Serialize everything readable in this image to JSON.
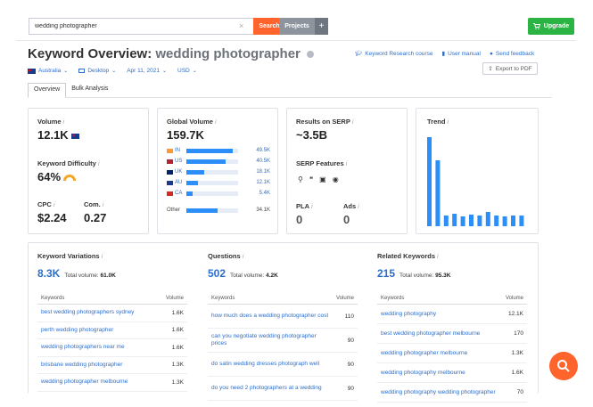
{
  "search": {
    "value": "wedding photographer",
    "button_label": "Search",
    "clear_symbol": "×"
  },
  "projects": {
    "label": "Projects",
    "plus": "+"
  },
  "upgrade": {
    "label": "Upgrade"
  },
  "title": {
    "prefix": "Keyword Overview:",
    "keyword": "wedding photographer"
  },
  "filters": {
    "database": "Australia",
    "device": "Desktop",
    "date": "Apr 11, 2021",
    "currency": "USD"
  },
  "links": {
    "research_course": "Keyword Research course",
    "user_manual": "User manual",
    "feedback": "Send feedback",
    "export": "Export to PDF"
  },
  "tabs": [
    {
      "label": "Overview",
      "active": true
    },
    {
      "label": "Bulk Analysis",
      "active": false
    }
  ],
  "volume": {
    "label": "Volume",
    "value": "12.1K"
  },
  "difficulty": {
    "label": "Keyword Difficulty",
    "value": "64%"
  },
  "cpc": {
    "label": "CPC",
    "value": "$2.24"
  },
  "com": {
    "label": "Com.",
    "value": "0.27"
  },
  "global": {
    "label": "Global Volume",
    "value": "159.7K",
    "countries": [
      {
        "code": "IN",
        "value": "49.5K",
        "share": 0.31,
        "flag": "#ff9933"
      },
      {
        "code": "US",
        "value": "40.5K",
        "share": 0.26,
        "flag": "#b22234"
      },
      {
        "code": "UK",
        "value": "18.1K",
        "share": 0.12,
        "flag": "#012169"
      },
      {
        "code": "AU",
        "value": "12.1K",
        "share": 0.08,
        "flag": "#1a3a8c"
      },
      {
        "code": "CA",
        "value": "5.4K",
        "share": 0.04,
        "flag": "#d52b1e"
      }
    ],
    "other": {
      "label": "Other",
      "value": "34.1K",
      "share": 0.21
    }
  },
  "serp": {
    "label": "Results on SERP",
    "value": "~3.5B",
    "features_label": "SERP Features",
    "pla_label": "PLA",
    "pla_value": "0",
    "ads_label": "Ads",
    "ads_value": "0"
  },
  "trend": {
    "label": "Trend",
    "values": [
      1.0,
      0.74,
      0.12,
      0.14,
      0.11,
      0.13,
      0.12,
      0.16,
      0.12,
      0.11,
      0.12,
      0.12
    ],
    "color": "#2c8ef8"
  },
  "variations": {
    "title": "Keyword Variations",
    "count": "8.3K",
    "total_label": "Total volume:",
    "total": "61.0K",
    "col_kw": "Keywords",
    "col_vol": "Volume",
    "rows": [
      {
        "k": "best wedding photographers sydney",
        "v": "1.6K"
      },
      {
        "k": "perth wedding photographer",
        "v": "1.6K"
      },
      {
        "k": "wedding photographers near me",
        "v": "1.6K"
      },
      {
        "k": "brisbane wedding photographer",
        "v": "1.3K"
      },
      {
        "k": "wedding photographer melbourne",
        "v": "1.3K"
      }
    ]
  },
  "questions": {
    "title": "Questions",
    "count": "502",
    "total_label": "Total volume:",
    "total": "4.2K",
    "col_kw": "Keywords",
    "col_vol": "Volume",
    "rows": [
      {
        "k": "how much does a wedding photographer cost",
        "v": "110"
      },
      {
        "k": "can you negotiate wedding photographer prices",
        "v": "90"
      },
      {
        "k": "do satin wedding dresses photograph well",
        "v": "90"
      },
      {
        "k": "do you need 2 photographers at a wedding",
        "v": "90"
      }
    ]
  },
  "related": {
    "title": "Related Keywords",
    "count": "215",
    "total_label": "Total volume:",
    "total": "95.3K",
    "col_kw": "Keywords",
    "col_vol": "Volume",
    "rows": [
      {
        "k": "wedding photography",
        "v": "12.1K"
      },
      {
        "k": "best wedding photographer melbourne",
        "v": "170"
      },
      {
        "k": "wedding photographer melbourne",
        "v": "1.3K"
      },
      {
        "k": "wedding photography melbourne",
        "v": "1.6K"
      },
      {
        "k": "wedding photography wedding photographer",
        "v": "70"
      }
    ]
  }
}
